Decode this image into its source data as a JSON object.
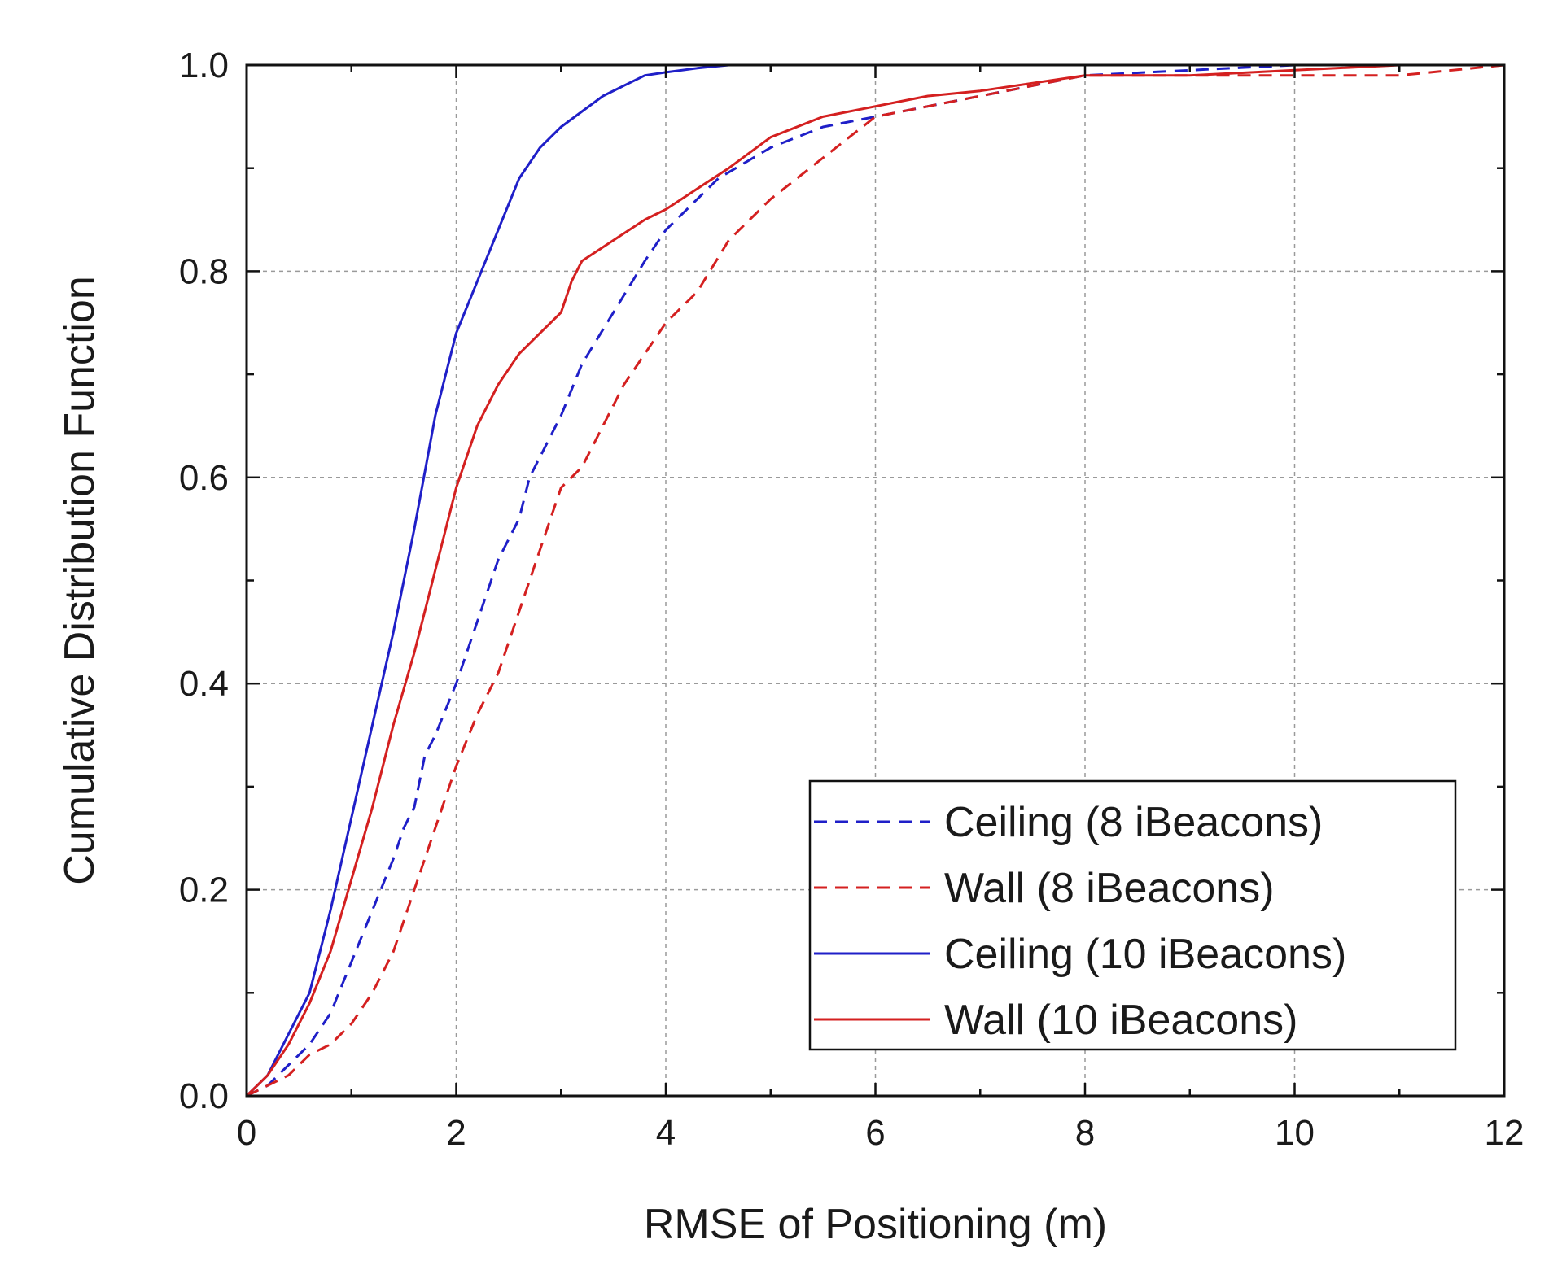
{
  "chart_data": {
    "type": "line",
    "title": "",
    "xlabel": "RMSE of Positioning (m)",
    "ylabel": "Cumulative Distribution Function",
    "xlim": [
      0,
      12
    ],
    "ylim": [
      0,
      1.0
    ],
    "xticks": [
      0,
      2,
      4,
      6,
      8,
      10,
      12
    ],
    "xtick_labels": [
      "0",
      "2",
      "4",
      "6",
      "8",
      "10",
      "12"
    ],
    "yticks": [
      0.0,
      0.2,
      0.4,
      0.6,
      0.8,
      1.0
    ],
    "ytick_labels": [
      "0.0",
      "0.2",
      "0.4",
      "0.6",
      "0.8",
      "1.0"
    ],
    "grid": true,
    "legend_position": "bottom-right",
    "series": [
      {
        "name": "Ceiling (8 iBeacons)",
        "color": "#1f1fc8",
        "style": "dashed",
        "x": [
          0,
          0.2,
          0.4,
          0.6,
          0.8,
          1.0,
          1.2,
          1.4,
          1.5,
          1.6,
          1.7,
          1.8,
          2.0,
          2.2,
          2.4,
          2.6,
          2.7,
          2.8,
          3.0,
          3.2,
          3.5,
          3.8,
          4.0,
          4.2,
          4.5,
          5.0,
          5.5,
          6.0,
          7.0,
          8.0,
          9.0,
          10.0,
          11.0,
          12.0
        ],
        "y": [
          0,
          0.01,
          0.03,
          0.05,
          0.08,
          0.13,
          0.18,
          0.23,
          0.26,
          0.28,
          0.33,
          0.35,
          0.4,
          0.46,
          0.52,
          0.56,
          0.6,
          0.62,
          0.66,
          0.71,
          0.76,
          0.81,
          0.84,
          0.86,
          0.89,
          0.92,
          0.94,
          0.95,
          0.97,
          0.99,
          0.995,
          1.0,
          1.0,
          1.0
        ]
      },
      {
        "name": "Wall (8 iBeacons)",
        "color": "#d42020",
        "style": "dashed",
        "x": [
          0,
          0.2,
          0.4,
          0.6,
          0.8,
          1.0,
          1.2,
          1.4,
          1.6,
          1.8,
          2.0,
          2.2,
          2.4,
          2.6,
          2.8,
          3.0,
          3.1,
          3.2,
          3.4,
          3.6,
          3.8,
          4.0,
          4.3,
          4.6,
          5.0,
          5.5,
          6.0,
          6.5,
          7.0,
          8.0,
          9.0,
          10.0,
          11.0,
          12.0
        ],
        "y": [
          0,
          0.01,
          0.02,
          0.04,
          0.05,
          0.07,
          0.1,
          0.14,
          0.2,
          0.26,
          0.32,
          0.37,
          0.41,
          0.47,
          0.53,
          0.59,
          0.6,
          0.61,
          0.65,
          0.69,
          0.72,
          0.75,
          0.78,
          0.83,
          0.87,
          0.91,
          0.95,
          0.96,
          0.97,
          0.99,
          0.99,
          0.99,
          0.99,
          1.0
        ]
      },
      {
        "name": "Ceiling (10 iBeacons)",
        "color": "#1f1fc8",
        "style": "solid",
        "x": [
          0,
          0.2,
          0.4,
          0.6,
          0.8,
          1.0,
          1.2,
          1.4,
          1.6,
          1.8,
          2.0,
          2.2,
          2.4,
          2.6,
          2.8,
          3.0,
          3.2,
          3.4,
          3.6,
          3.8,
          4.0,
          4.3,
          4.6,
          5.0,
          6.0,
          8.0,
          10.0,
          12.0
        ],
        "y": [
          0,
          0.02,
          0.06,
          0.1,
          0.18,
          0.27,
          0.36,
          0.45,
          0.55,
          0.66,
          0.74,
          0.79,
          0.84,
          0.89,
          0.92,
          0.94,
          0.955,
          0.97,
          0.98,
          0.99,
          0.993,
          0.997,
          1.0,
          1.0,
          1.0,
          1.0,
          1.0,
          1.0
        ]
      },
      {
        "name": "Wall (10 iBeacons)",
        "color": "#d42020",
        "style": "solid",
        "x": [
          0,
          0.2,
          0.4,
          0.6,
          0.8,
          1.0,
          1.2,
          1.4,
          1.6,
          1.8,
          2.0,
          2.2,
          2.4,
          2.6,
          2.8,
          3.0,
          3.1,
          3.2,
          3.5,
          3.8,
          4.0,
          4.3,
          4.6,
          5.0,
          5.5,
          6.0,
          6.5,
          7.0,
          8.0,
          9.0,
          10.0,
          11.0,
          12.0
        ],
        "y": [
          0,
          0.02,
          0.05,
          0.09,
          0.14,
          0.21,
          0.28,
          0.36,
          0.43,
          0.51,
          0.59,
          0.65,
          0.69,
          0.72,
          0.74,
          0.76,
          0.79,
          0.81,
          0.83,
          0.85,
          0.86,
          0.88,
          0.9,
          0.93,
          0.95,
          0.96,
          0.97,
          0.975,
          0.99,
          0.99,
          0.995,
          1.0,
          1.0
        ]
      }
    ]
  }
}
